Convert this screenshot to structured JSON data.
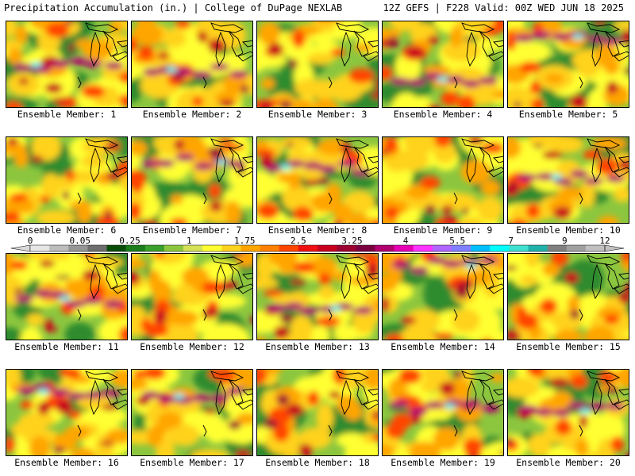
{
  "header": {
    "title": "Precipitation Accumulation (in.) | College of DuPage NEXLAB",
    "run_info": "12Z GEFS | F228 Valid: 00Z WED JUN 18 2025"
  },
  "members": [
    {
      "label": "Ensemble Member: 1"
    },
    {
      "label": "Ensemble Member: 2"
    },
    {
      "label": "Ensemble Member: 3"
    },
    {
      "label": "Ensemble Member: 4"
    },
    {
      "label": "Ensemble Member: 5"
    },
    {
      "label": "Ensemble Member: 6"
    },
    {
      "label": "Ensemble Member: 7"
    },
    {
      "label": "Ensemble Member: 8"
    },
    {
      "label": "Ensemble Member: 9"
    },
    {
      "label": "Ensemble Member: 10"
    },
    {
      "label": "Ensemble Member: 11"
    },
    {
      "label": "Ensemble Member: 12"
    },
    {
      "label": "Ensemble Member: 13"
    },
    {
      "label": "Ensemble Member: 14"
    },
    {
      "label": "Ensemble Member: 15"
    },
    {
      "label": "Ensemble Member: 16"
    },
    {
      "label": "Ensemble Member: 17"
    },
    {
      "label": "Ensemble Member: 18"
    },
    {
      "label": "Ensemble Member: 19"
    },
    {
      "label": "Ensemble Member: 20"
    }
  ],
  "colorbar": {
    "tick_labels": [
      "0",
      "0.05",
      "0.25",
      "1",
      "1.75",
      "2.5",
      "3.25",
      "4",
      "5.5",
      "7",
      "9",
      "12"
    ],
    "colors": [
      "#e6e6e6",
      "#bdbdbd",
      "#969696",
      "#6e6e6e",
      "#0a4d0a",
      "#1b7d1b",
      "#3aa02c",
      "#8cc63f",
      "#d4e157",
      "#ffff33",
      "#ffd21e",
      "#ffa500",
      "#ff7f00",
      "#ff4500",
      "#ee1010",
      "#c8001e",
      "#9c0030",
      "#7a0040",
      "#b0006e",
      "#e600b4",
      "#ff33ff",
      "#b066ff",
      "#7f7fff",
      "#00bfff",
      "#00ffff",
      "#40e0d0",
      "#20b2aa",
      "#808080",
      "#a0a0a0",
      "#c0c0c0"
    ]
  }
}
